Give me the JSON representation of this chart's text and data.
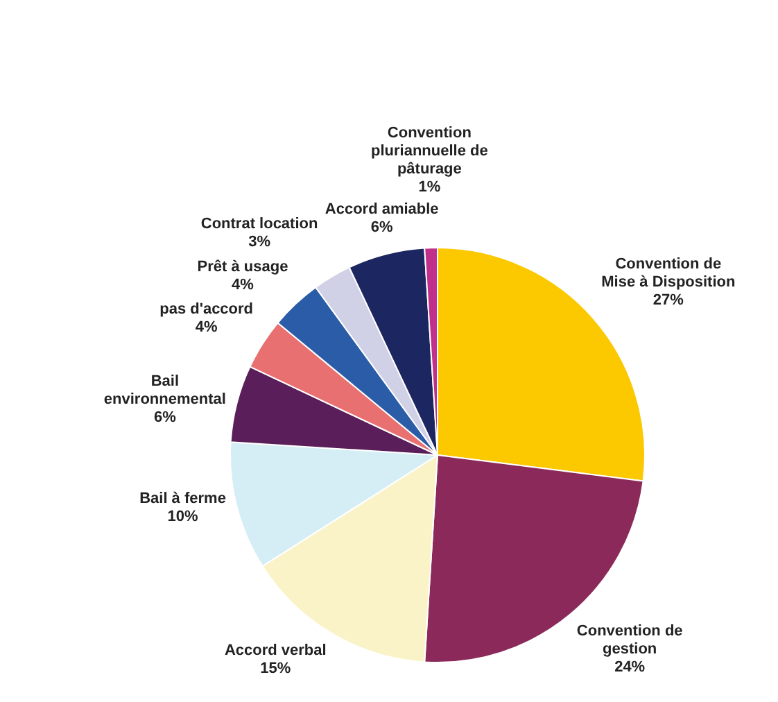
{
  "chart_data": {
    "type": "pie",
    "categories": [
      "Convention de Mise à Disposition",
      "Convention de gestion",
      "Accord verbal",
      "Bail à ferme",
      "Bail environnemental",
      "pas d'accord",
      "Prêt à usage",
      "Contrat location",
      "Accord amiable",
      "Convention pluriannuelle de pâturage"
    ],
    "values": [
      27,
      24,
      15,
      10,
      6,
      4,
      4,
      3,
      6,
      1
    ],
    "value_labels": [
      "27%",
      "24%",
      "15%",
      "10%",
      "6%",
      "4%",
      "4%",
      "3%",
      "6%",
      "1%"
    ],
    "colors": [
      "#fcc800",
      "#8b2a5a",
      "#fbf3c8",
      "#d5eef5",
      "#5a1e5a",
      "#e87070",
      "#2a5ca8",
      "#d0d0e6",
      "#1c2660",
      "#c0308a"
    ],
    "legend": false
  }
}
